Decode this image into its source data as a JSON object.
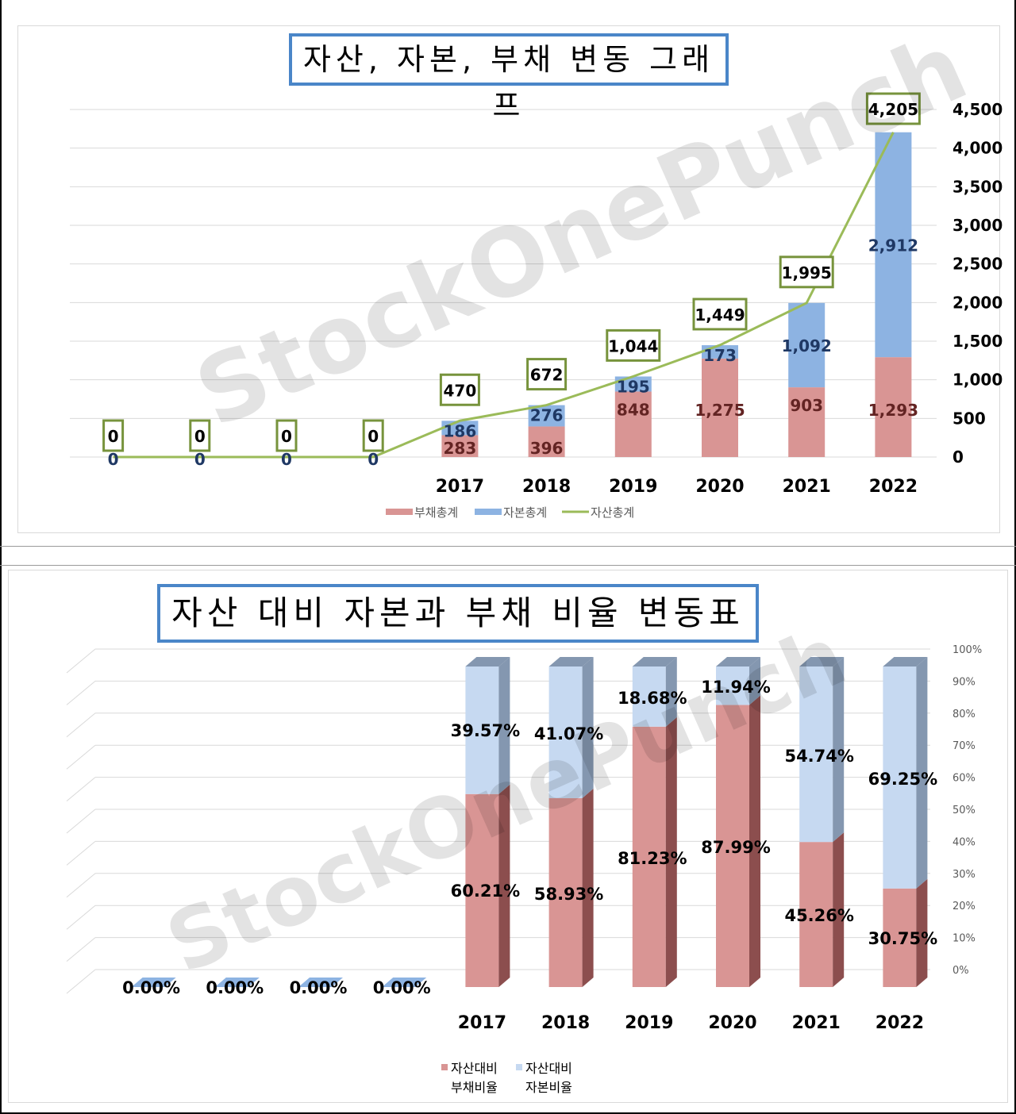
{
  "chart_data": [
    {
      "type": "bar",
      "stacked": true,
      "title": "자산, 자본, 부채 변동 그래프",
      "categories": [
        "",
        "",
        "",
        "",
        "2017",
        "2018",
        "2019",
        "2020",
        "2021",
        "2022"
      ],
      "series": [
        {
          "name": "부채총계",
          "kind": "bar",
          "color": "#d99594",
          "values": [
            0,
            0,
            0,
            0,
            283,
            396,
            848,
            1275,
            903,
            1293
          ],
          "labels": [
            "",
            "",
            "",
            "",
            "283",
            "396",
            "848",
            "1,275",
            "903",
            "1,293"
          ]
        },
        {
          "name": "자본총계",
          "kind": "bar",
          "color": "#8db3e2",
          "values": [
            0,
            0,
            0,
            0,
            186,
            276,
            195,
            173,
            1092,
            2912
          ],
          "labels": [
            "0",
            "0",
            "0",
            "0",
            "186",
            "276",
            "195",
            "173",
            "1,092",
            "2,912"
          ]
        },
        {
          "name": "자산총계",
          "kind": "line",
          "color": "#9bbb59",
          "values": [
            0,
            0,
            0,
            0,
            470,
            672,
            1044,
            1449,
            1995,
            4205
          ],
          "labels": [
            "0",
            "0",
            "0",
            "0",
            "470",
            "672",
            "1,044",
            "1,449",
            "1,995",
            "4,205"
          ]
        }
      ],
      "ylim": [
        0,
        4500
      ],
      "yticks": [
        0,
        500,
        1000,
        1500,
        2000,
        2500,
        3000,
        3500,
        4000,
        4500
      ],
      "ytick_labels": [
        "0",
        "500",
        "1,000",
        "1,500",
        "2,000",
        "2,500",
        "3,000",
        "3,500",
        "4,000",
        "4,500"
      ],
      "y_axis_side": "right",
      "grid": true,
      "legend": "bottom"
    },
    {
      "type": "bar",
      "stacked": true,
      "percent": true,
      "three_d": true,
      "title": "자산 대비 자본과 부채 비율 변동표",
      "categories": [
        "",
        "",
        "",
        "",
        "2017",
        "2018",
        "2019",
        "2020",
        "2021",
        "2022"
      ],
      "series": [
        {
          "name": "자산대비 부채비율",
          "name_lines": [
            "자산대비",
            "부채비율"
          ],
          "color": "#d99594",
          "values": [
            0,
            0,
            0,
            0,
            60.21,
            58.93,
            81.23,
            87.99,
            45.26,
            30.75
          ],
          "labels": [
            "0.00%",
            "0.00%",
            "0.00%",
            "0.00%",
            "60.21%",
            "58.93%",
            "81.23%",
            "87.99%",
            "45.26%",
            "30.75%"
          ]
        },
        {
          "name": "자산대비 자본비율",
          "name_lines": [
            "자산대비",
            "자본비율"
          ],
          "color": "#c6d9f1",
          "values": [
            0,
            0,
            0,
            0,
            39.57,
            41.07,
            18.68,
            11.94,
            54.74,
            69.25
          ],
          "labels": [
            "",
            "",
            "",
            "",
            "39.57%",
            "41.07%",
            "18.68%",
            "11.94%",
            "54.74%",
            "69.25%"
          ]
        }
      ],
      "ylim": [
        0,
        100
      ],
      "yticks": [
        0,
        10,
        20,
        30,
        40,
        50,
        60,
        70,
        80,
        90,
        100
      ],
      "ytick_labels": [
        "0%",
        "10%",
        "20%",
        "30%",
        "40%",
        "50%",
        "60%",
        "70%",
        "80%",
        "90%",
        "100%"
      ],
      "y_axis_side": "right",
      "grid": true,
      "legend": "bottom"
    }
  ],
  "watermark": "StockOnePunch"
}
